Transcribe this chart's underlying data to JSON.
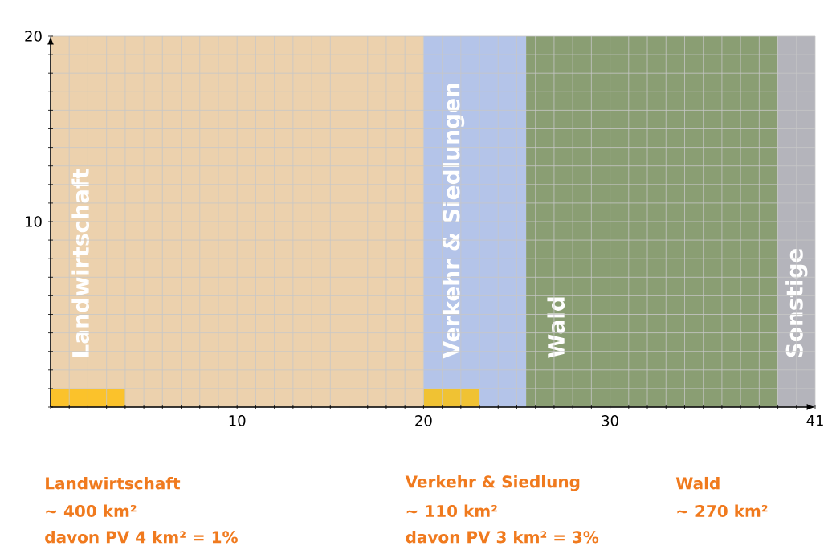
{
  "chart_data": {
    "type": "area",
    "series": [
      {
        "name": "Landwirtschaft",
        "color": "#ecd1ad",
        "x": [
          0,
          20
        ],
        "values": [
          20,
          20
        ]
      },
      {
        "name": "Verkehr & Siedlungen",
        "color": "#b4c4e9",
        "x": [
          20,
          25.5
        ],
        "values": [
          20,
          20
        ]
      },
      {
        "name": "Wald",
        "color": "#8a9e73",
        "x": [
          25.5,
          39
        ],
        "values": [
          20,
          20
        ]
      },
      {
        "name": "Sonstige",
        "color": "#b4b4bb",
        "x": [
          39,
          41
        ],
        "values": [
          20,
          20
        ]
      },
      {
        "color": "#fbc22b",
        "x": [
          0,
          4
        ],
        "values": [
          1,
          1
        ]
      },
      {
        "color": "#f0c233",
        "x": [
          20,
          23
        ],
        "values": [
          1,
          1
        ]
      }
    ],
    "xlim": [
      0,
      41
    ],
    "ylim": [
      0,
      20
    ],
    "xticks": [
      {
        "value": 0,
        "label": null
      },
      {
        "value": 1,
        "label": null
      },
      {
        "value": 2,
        "label": null
      },
      {
        "value": 3,
        "label": null
      },
      {
        "value": 4,
        "label": null
      },
      {
        "value": 5,
        "label": null
      },
      {
        "value": 6,
        "label": null
      },
      {
        "value": 7,
        "label": null
      },
      {
        "value": 8,
        "label": null
      },
      {
        "value": 9,
        "label": null
      },
      10,
      {
        "value": 11,
        "label": null
      },
      {
        "value": 12,
        "label": null
      },
      {
        "value": 13,
        "label": null
      },
      {
        "value": 14,
        "label": null
      },
      {
        "value": 15,
        "label": null
      },
      {
        "value": 16,
        "label": null
      },
      {
        "value": 17,
        "label": null
      },
      {
        "value": 18,
        "label": null
      },
      {
        "value": 19,
        "label": null
      },
      20,
      {
        "value": 21,
        "label": null
      },
      {
        "value": 22,
        "label": null
      },
      {
        "value": 23,
        "label": null
      },
      {
        "value": 24,
        "label": null
      },
      {
        "value": 25,
        "label": null
      },
      {
        "value": 26,
        "label": null
      },
      {
        "value": 27,
        "label": null
      },
      {
        "value": 28,
        "label": null
      },
      {
        "value": 29,
        "label": null
      },
      30,
      {
        "value": 31,
        "label": null
      },
      {
        "value": 32,
        "label": null
      },
      {
        "value": 33,
        "label": null
      },
      {
        "value": 34,
        "label": null
      },
      {
        "value": 35,
        "label": null
      },
      {
        "value": 36,
        "label": null
      },
      {
        "value": 37,
        "label": null
      },
      {
        "value": 38,
        "label": null
      },
      {
        "value": 39,
        "label": null
      },
      {
        "value": 40,
        "label": null
      },
      41
    ],
    "yticks": [
      {
        "value": 0,
        "label": null
      },
      {
        "value": 1,
        "label": null
      },
      {
        "value": 2,
        "label": null
      },
      {
        "value": 3,
        "label": null
      },
      {
        "value": 4,
        "label": null
      },
      {
        "value": 5,
        "label": null
      },
      {
        "value": 6,
        "label": null
      },
      {
        "value": 7,
        "label": null
      },
      {
        "value": 8,
        "label": null
      },
      {
        "value": 9,
        "label": null
      },
      10,
      {
        "value": 11,
        "label": null
      },
      {
        "value": 12,
        "label": null
      },
      {
        "value": 13,
        "label": null
      },
      {
        "value": 14,
        "label": null
      },
      {
        "value": 15,
        "label": null
      },
      {
        "value": 16,
        "label": null
      },
      {
        "value": 17,
        "label": null
      },
      {
        "value": 18,
        "label": null
      },
      {
        "value": 19,
        "label": null
      },
      20
    ],
    "grid": true,
    "annotations": [
      "Landwirtschaft",
      "~ 400 km²",
      "davon PV 4 km² = 1%",
      "Verkehr & Siedlung",
      "~ 110 km²",
      "davon PV 3 km² = 3%",
      "Wald",
      "~ 270 km²"
    ]
  }
}
